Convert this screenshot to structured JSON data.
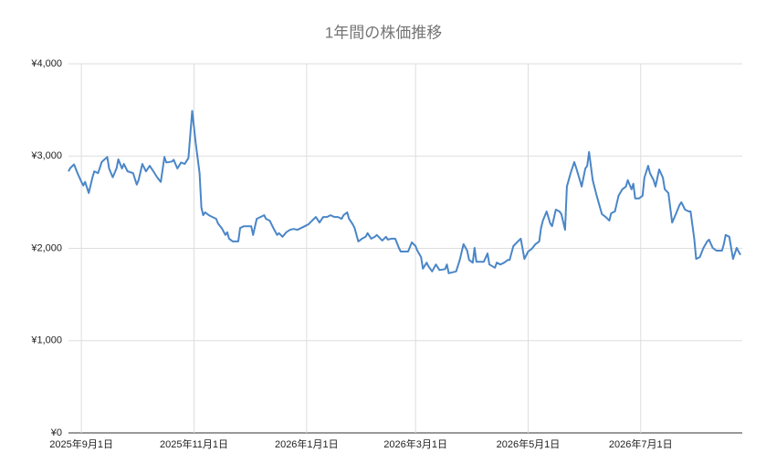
{
  "chart_data": {
    "type": "line",
    "title": "1年間の株価推移",
    "color": "#4a86c8",
    "grid": true,
    "xlim": [
      "2025-08-25",
      "2026-08-25"
    ],
    "xticks": [
      {
        "value": "2025-09-01",
        "label": "2025年9月1日"
      },
      {
        "value": "2025-11-01",
        "label": "2025年11月1日"
      },
      {
        "value": "2026-01-01",
        "label": "2026年1月1日"
      },
      {
        "value": "2026-03-01",
        "label": "2026年3月1日"
      },
      {
        "value": "2026-05-01",
        "label": "2026年5月1日"
      },
      {
        "value": "2026-07-01",
        "label": "2026年7月1日"
      }
    ],
    "ylim": [
      0,
      4000
    ],
    "yticks": [
      {
        "value": 0,
        "label": "¥0"
      },
      {
        "value": 1000,
        "label": "¥1,000"
      },
      {
        "value": 2000,
        "label": "¥2,000"
      },
      {
        "value": 3000,
        "label": "¥3,000"
      },
      {
        "value": 4000,
        "label": "¥4,000"
      }
    ],
    "x": [
      "2025-08-25",
      "2025-08-26",
      "2025-08-28",
      "2025-08-30",
      "2025-09-01",
      "2025-09-02",
      "2025-09-03",
      "2025-09-05",
      "2025-09-07",
      "2025-09-08",
      "2025-09-10",
      "2025-09-12",
      "2025-09-15",
      "2025-09-16",
      "2025-09-18",
      "2025-09-20",
      "2025-09-21",
      "2025-09-23",
      "2025-09-24",
      "2025-09-26",
      "2025-09-29",
      "2025-10-01",
      "2025-10-02",
      "2025-10-04",
      "2025-10-06",
      "2025-10-08",
      "2025-10-10",
      "2025-10-12",
      "2025-10-14",
      "2025-10-16",
      "2025-10-17",
      "2025-10-20",
      "2025-10-21",
      "2025-10-23",
      "2025-10-25",
      "2025-10-27",
      "2025-10-29",
      "2025-10-31",
      "2025-11-02",
      "2025-11-04",
      "2025-11-05",
      "2025-11-06",
      "2025-11-07",
      "2025-11-09",
      "2025-11-11",
      "2025-11-13",
      "2025-11-14",
      "2025-11-16",
      "2025-11-18",
      "2025-11-19",
      "2025-11-20",
      "2025-11-22",
      "2025-11-25",
      "2025-11-26",
      "2025-11-28",
      "2025-11-30",
      "2025-12-02",
      "2025-12-03",
      "2025-12-05",
      "2025-12-07",
      "2025-12-09",
      "2025-12-10",
      "2025-12-12",
      "2025-12-14",
      "2025-12-16",
      "2025-12-17",
      "2025-12-19",
      "2025-12-21",
      "2025-12-23",
      "2025-12-25",
      "2025-12-27",
      "2025-12-29",
      "2026-01-02",
      "2026-01-04",
      "2026-01-06",
      "2026-01-08",
      "2026-01-10",
      "2026-01-12",
      "2026-01-14",
      "2026-01-16",
      "2026-01-18",
      "2026-01-20",
      "2026-01-21",
      "2026-01-23",
      "2026-01-24",
      "2026-01-26",
      "2026-01-27",
      "2026-01-29",
      "2026-01-31",
      "2026-02-02",
      "2026-02-03",
      "2026-02-05",
      "2026-02-07",
      "2026-02-08",
      "2026-02-10",
      "2026-02-11",
      "2026-02-13",
      "2026-02-14",
      "2026-02-16",
      "2026-02-18",
      "2026-02-20",
      "2026-02-21",
      "2026-02-25",
      "2026-02-27",
      "2026-03-01",
      "2026-03-02",
      "2026-03-04",
      "2026-03-05",
      "2026-03-07",
      "2026-03-08",
      "2026-03-10",
      "2026-03-12",
      "2026-03-14",
      "2026-03-17",
      "2026-03-18",
      "2026-03-19",
      "2026-03-23",
      "2026-03-25",
      "2026-03-27",
      "2026-03-29",
      "2026-03-30",
      "2026-04-01",
      "2026-04-02",
      "2026-04-03",
      "2026-04-05",
      "2026-04-07",
      "2026-04-09",
      "2026-04-10",
      "2026-04-13",
      "2026-04-14",
      "2026-04-16",
      "2026-04-18",
      "2026-04-20",
      "2026-04-21",
      "2026-04-23",
      "2026-04-25",
      "2026-04-27",
      "2026-04-29",
      "2026-05-01",
      "2026-05-03",
      "2026-05-05",
      "2026-05-07",
      "2026-05-08",
      "2026-05-09",
      "2026-05-11",
      "2026-05-13",
      "2026-05-14",
      "2026-05-16",
      "2026-05-18",
      "2026-05-19",
      "2026-05-21",
      "2026-05-22",
      "2026-05-24",
      "2026-05-26",
      "2026-05-27",
      "2026-05-29",
      "2026-05-30",
      "2026-06-01",
      "2026-06-02",
      "2026-06-03",
      "2026-06-05",
      "2026-06-07",
      "2026-06-09",
      "2026-06-10",
      "2026-06-12",
      "2026-06-14",
      "2026-06-15",
      "2026-06-17",
      "2026-06-19",
      "2026-06-21",
      "2026-06-23",
      "2026-06-24",
      "2026-06-26",
      "2026-06-27",
      "2026-06-28",
      "2026-06-30",
      "2026-07-02",
      "2026-07-03",
      "2026-07-05",
      "2026-07-06",
      "2026-07-08",
      "2026-07-09",
      "2026-07-11",
      "2026-07-13",
      "2026-07-14",
      "2026-07-16",
      "2026-07-18",
      "2026-07-20",
      "2026-07-22",
      "2026-07-23",
      "2026-07-25",
      "2026-07-27",
      "2026-07-28",
      "2026-07-30",
      "2026-07-31",
      "2026-08-02",
      "2026-08-04",
      "2026-08-06",
      "2026-08-07",
      "2026-08-09",
      "2026-08-11",
      "2026-08-14",
      "2026-08-15",
      "2026-08-16",
      "2026-08-18",
      "2026-08-20",
      "2026-08-22",
      "2026-08-23",
      "2026-08-24"
    ],
    "values": [
      2835,
      2870,
      2910,
      2810,
      2720,
      2680,
      2720,
      2600,
      2770,
      2835,
      2815,
      2935,
      2990,
      2865,
      2770,
      2865,
      2965,
      2865,
      2915,
      2835,
      2815,
      2690,
      2740,
      2915,
      2835,
      2895,
      2835,
      2770,
      2720,
      2990,
      2930,
      2940,
      2960,
      2865,
      2930,
      2915,
      2980,
      3490,
      3130,
      2815,
      2440,
      2360,
      2390,
      2360,
      2340,
      2320,
      2270,
      2220,
      2145,
      2175,
      2105,
      2075,
      2075,
      2220,
      2240,
      2240,
      2240,
      2145,
      2320,
      2340,
      2360,
      2320,
      2300,
      2220,
      2145,
      2165,
      2125,
      2175,
      2200,
      2210,
      2200,
      2220,
      2260,
      2300,
      2340,
      2280,
      2340,
      2340,
      2360,
      2340,
      2340,
      2320,
      2360,
      2390,
      2320,
      2260,
      2220,
      2075,
      2105,
      2125,
      2165,
      2105,
      2125,
      2145,
      2105,
      2085,
      2125,
      2095,
      2105,
      2105,
      2005,
      1965,
      1965,
      2065,
      2025,
      1975,
      1905,
      1780,
      1845,
      1805,
      1750,
      1825,
      1765,
      1775,
      1825,
      1730,
      1750,
      1875,
      2045,
      1975,
      1875,
      1845,
      2005,
      1855,
      1855,
      1855,
      1945,
      1825,
      1790,
      1845,
      1825,
      1845,
      1875,
      1875,
      2025,
      2065,
      2105,
      1885,
      1965,
      1995,
      2045,
      2075,
      2220,
      2300,
      2400,
      2270,
      2240,
      2420,
      2400,
      2370,
      2200,
      2670,
      2815,
      2935,
      2875,
      2740,
      2670,
      2865,
      2895,
      3045,
      2740,
      2580,
      2440,
      2370,
      2340,
      2300,
      2380,
      2400,
      2570,
      2640,
      2670,
      2740,
      2640,
      2700,
      2540,
      2540,
      2570,
      2765,
      2895,
      2815,
      2740,
      2670,
      2855,
      2765,
      2640,
      2600,
      2280,
      2370,
      2470,
      2500,
      2420,
      2400,
      2400,
      2105,
      1885,
      1905,
      2005,
      2075,
      2095,
      2005,
      1975,
      1975,
      2045,
      2145,
      2125,
      1885,
      2005,
      1965,
      1930
    ]
  }
}
